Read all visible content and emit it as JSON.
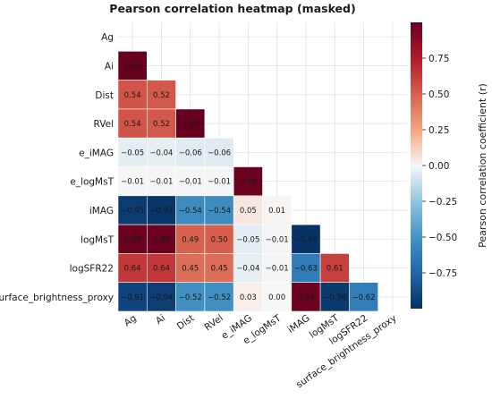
{
  "chart_data": {
    "type": "heatmap",
    "title": "Pearson correlation heatmap (masked)",
    "variables": [
      "Ag",
      "Ai",
      "Dist",
      "RVel",
      "e_iMAG",
      "e_logMsT",
      "iMAG",
      "logMsT",
      "logSFR22",
      "surface_brightness_proxy"
    ],
    "mask": "upper triangle including diagonal",
    "matrix": [
      [
        null,
        null,
        null,
        null,
        null,
        null,
        null,
        null,
        null,
        null
      ],
      [
        1.0,
        null,
        null,
        null,
        null,
        null,
        null,
        null,
        null,
        null
      ],
      [
        0.54,
        0.52,
        null,
        null,
        null,
        null,
        null,
        null,
        null,
        null
      ],
      [
        0.54,
        0.52,
        1.0,
        null,
        null,
        null,
        null,
        null,
        null,
        null
      ],
      [
        -0.05,
        -0.04,
        -0.06,
        -0.06,
        null,
        null,
        null,
        null,
        null,
        null
      ],
      [
        -0.01,
        -0.01,
        -0.01,
        -0.01,
        0.99,
        null,
        null,
        null,
        null,
        null
      ],
      [
        -0.95,
        -0.97,
        -0.54,
        -0.54,
        0.05,
        0.01,
        null,
        null,
        null,
        null
      ],
      [
        0.99,
        0.98,
        0.49,
        0.5,
        -0.05,
        -0.01,
        -0.98,
        null,
        null,
        null
      ],
      [
        0.64,
        0.64,
        0.45,
        0.45,
        -0.04,
        -0.01,
        -0.63,
        0.61,
        null,
        null
      ],
      [
        -0.91,
        -0.94,
        -0.52,
        -0.52,
        0.03,
        -0.0,
        0.98,
        -0.96,
        -0.62,
        null
      ]
    ],
    "colorbar": {
      "label": "Pearson correlation coefficient (r)",
      "ticks": [
        "0.75",
        "0.50",
        "0.25",
        "0.00",
        "−0.25",
        "−0.50",
        "−0.75"
      ],
      "tick_values": [
        0.75,
        0.5,
        0.25,
        0.0,
        -0.25,
        -0.5,
        -0.75
      ],
      "range": [
        -1,
        1
      ],
      "colormap": "RdBu_r"
    },
    "grid": true
  }
}
